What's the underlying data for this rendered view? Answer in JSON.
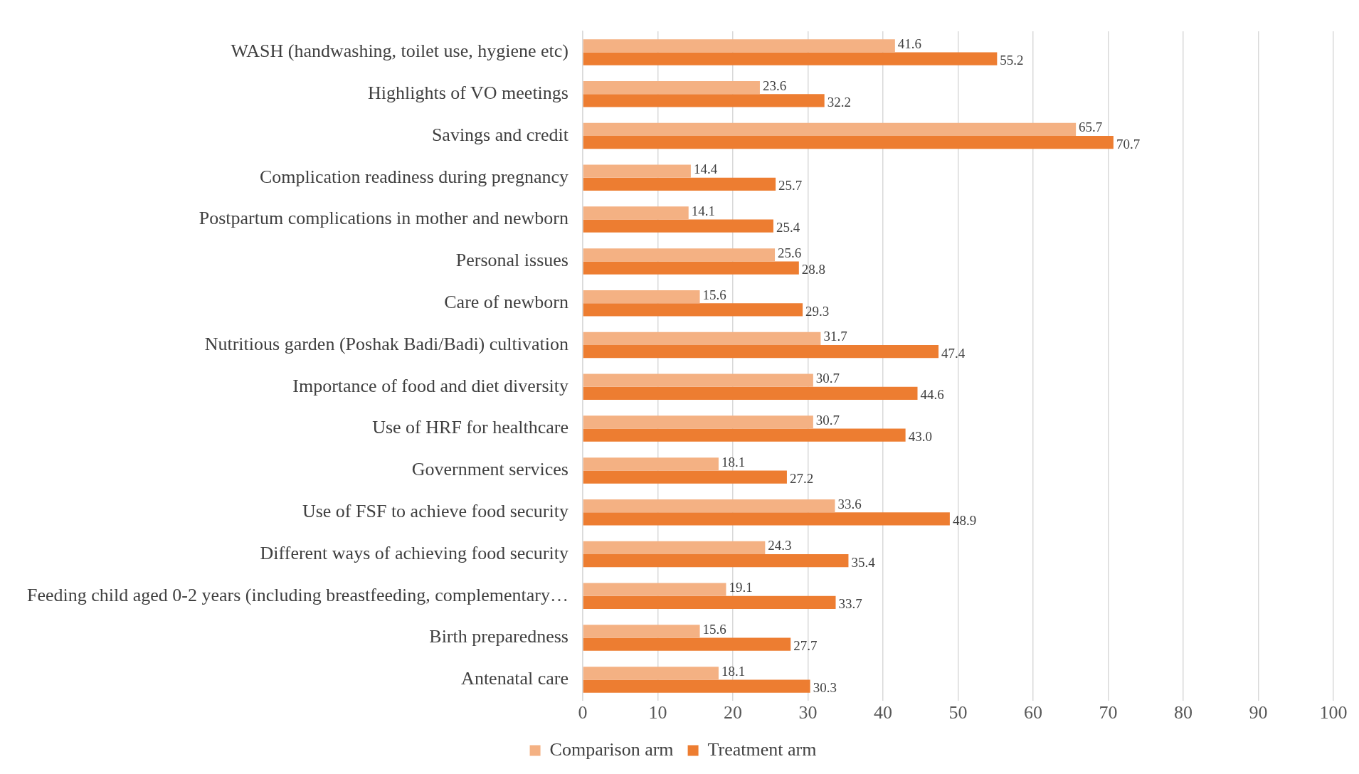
{
  "chart_data": {
    "type": "bar",
    "orientation": "horizontal",
    "categories": [
      "WASH (handwashing, toilet use, hygiene etc)",
      "Highlights of VO meetings",
      "Savings and credit",
      "Complication readiness during pregnancy",
      "Postpartum complications in mother and newborn",
      "Personal issues",
      "Care of newborn",
      "Nutritious garden (Poshak Badi/Badi) cultivation",
      "Importance of food and diet diversity",
      "Use of HRF for healthcare",
      "Government services",
      "Use of FSF to achieve food security",
      "Different ways of achieving food security",
      "Feeding child aged 0-2 years (including breastfeeding, complementary…",
      "Birth preparedness",
      "Antenatal care"
    ],
    "series": [
      {
        "name": "Comparison arm",
        "color": "#f4b183",
        "values": [
          41.6,
          23.6,
          65.7,
          14.4,
          14.1,
          25.6,
          15.6,
          31.7,
          30.7,
          30.7,
          18.1,
          33.6,
          24.3,
          19.1,
          15.6,
          18.1
        ],
        "value_labels": [
          "41.6",
          "23.6",
          "65.7",
          "14.4",
          "14.1",
          "25.6",
          "15.6",
          "31.7",
          "30.7",
          "30.7",
          "18.1",
          "33.6",
          "24.3",
          "19.1",
          "15.6",
          "18.1"
        ]
      },
      {
        "name": "Treatment arm",
        "color": "#ed7d31",
        "values": [
          55.2,
          32.2,
          70.7,
          25.7,
          25.4,
          28.8,
          29.3,
          47.4,
          44.6,
          43.0,
          27.2,
          48.9,
          35.4,
          33.7,
          27.7,
          30.3
        ],
        "value_labels": [
          "55.2",
          "32.2",
          "70.7",
          "25.7",
          "25.4",
          "28.8",
          "29.3",
          "47.4",
          "44.6",
          "43.0",
          "27.2",
          "48.9",
          "35.4",
          "33.7",
          "27.7",
          "30.3"
        ]
      }
    ],
    "xlim": [
      0,
      100
    ],
    "xticks": [
      0,
      10,
      20,
      30,
      40,
      50,
      60,
      70,
      80,
      90,
      100
    ],
    "grid": "x",
    "legend": "bottom"
  }
}
